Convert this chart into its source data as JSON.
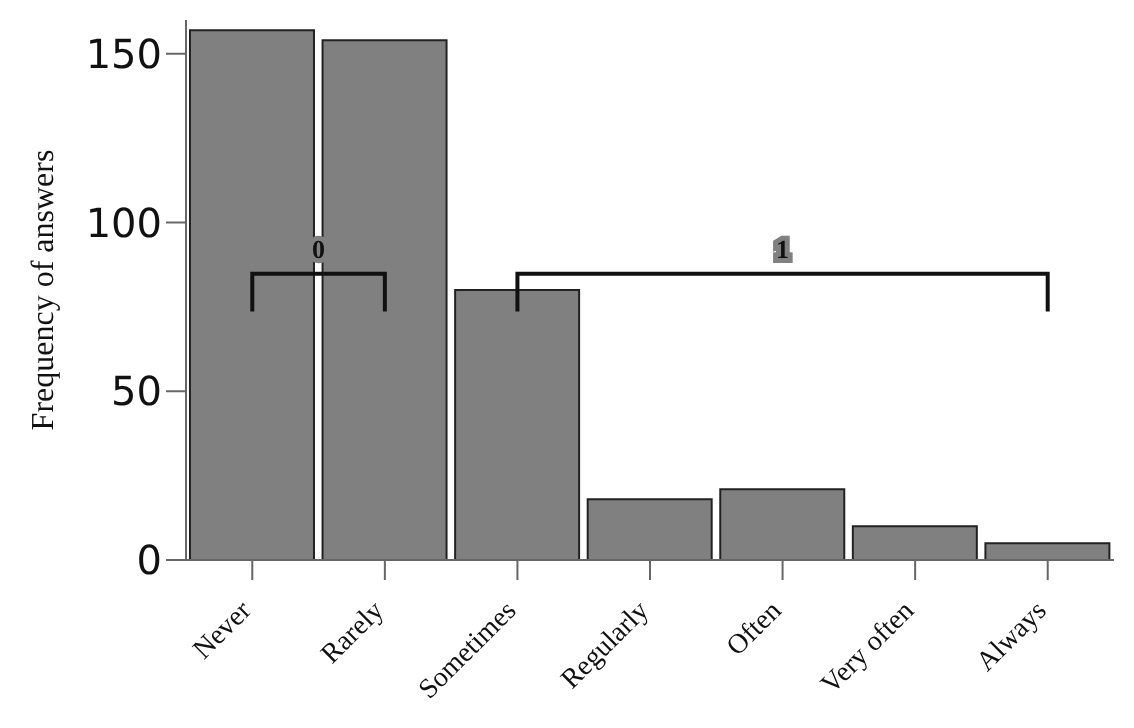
{
  "chart_data": {
    "type": "bar",
    "categories": [
      "Never",
      "Rarely",
      "Sometimes",
      "Regularly",
      "Often",
      "Very often",
      "Always"
    ],
    "values": [
      157,
      154,
      80,
      18,
      21,
      10,
      5
    ],
    "color": "#808080",
    "ylabel": "Frequency of answers",
    "ylim": [
      0,
      160
    ],
    "yticks": [
      0,
      50,
      100,
      150
    ],
    "annotations": [
      "0",
      "1"
    ],
    "grid": false,
    "legend": false
  }
}
